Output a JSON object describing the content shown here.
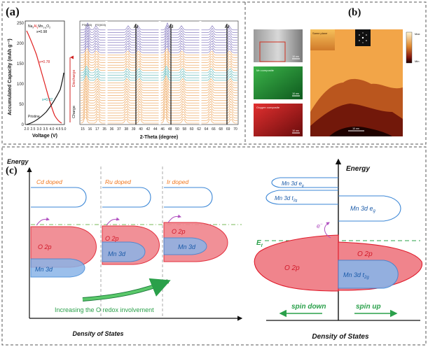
{
  "figure": {
    "panel_a": {
      "label": "(a)",
      "formula": "Na",
      "formula_al": "Al",
      "formula_mn": "Mn",
      "formula_o": "O",
      "formula_full": "Na(x)Al(y)Mn(1-y)O2",
      "x_labels": [
        "x=0.98",
        "x=0.78",
        "x=0.32"
      ],
      "pristine": "Pristine",
      "ylabel": "Accumulated Capacity (mAh g⁻¹)",
      "xlabel": "Voltage (V)",
      "yticks": [
        "0",
        "50",
        "100",
        "150",
        "200",
        "250"
      ],
      "xticks": [
        "2.0",
        "2.5",
        "3.0",
        "3.5",
        "4.0",
        "4.5",
        "5.0"
      ],
      "discharge": "Discharge",
      "charge": "Charge",
      "xrd_xlabel": "2-Theta (degree)",
      "peak_labels": [
        "P3(003)",
        "P3'(003)"
      ],
      "al_labels": [
        "Al",
        "Al",
        "Al"
      ],
      "xrd_ticks": [
        "15",
        "16",
        "17",
        "35",
        "36",
        "37",
        "38",
        "39",
        "40",
        "42",
        "44",
        "46",
        "48",
        "50",
        "58",
        "60",
        "62",
        "64",
        "66",
        "68",
        "69",
        "70"
      ]
    },
    "panel_b": {
      "label": "(b)",
      "map_labels": [
        "Mn composite",
        "Oxygen composite"
      ],
      "scale_labels": [
        "10 nm",
        "10 nm",
        "10 nm",
        "10 nm"
      ],
      "inset_label": "Same plane",
      "colorbar_max": "Max",
      "colorbar_min": "Min"
    },
    "panel_c": {
      "label": "(c)",
      "energy_left": "Energy",
      "energy_right": "Energy",
      "dopants": [
        "Cd doped",
        "Ru doped",
        "Ir doped"
      ],
      "o2p": "O 2p",
      "mn3d": "Mn 3d",
      "arrow_text": "Increasing the O redox involvement",
      "dos_left": "Density of States",
      "dos_right": "Density of States",
      "mn3d_eg": "Mn 3d e",
      "mn3d_eg_sub": "g",
      "mn3d_t2g": "Mn 3d t",
      "mn3d_t2g_sub": "2g",
      "electron": "e",
      "ef": "E",
      "ef_sub": "f",
      "spin_down": "spin down",
      "spin_up": "spin up"
    }
  },
  "colors": {
    "o2p_fill": "#f0848c",
    "o2p_stroke": "#e01a2a",
    "mn_fill": "#8ab4e8",
    "mn_stroke": "#3a86d6",
    "orange_text": "#f07820",
    "green": "#2aa04a",
    "purple": "#b050c0"
  }
}
